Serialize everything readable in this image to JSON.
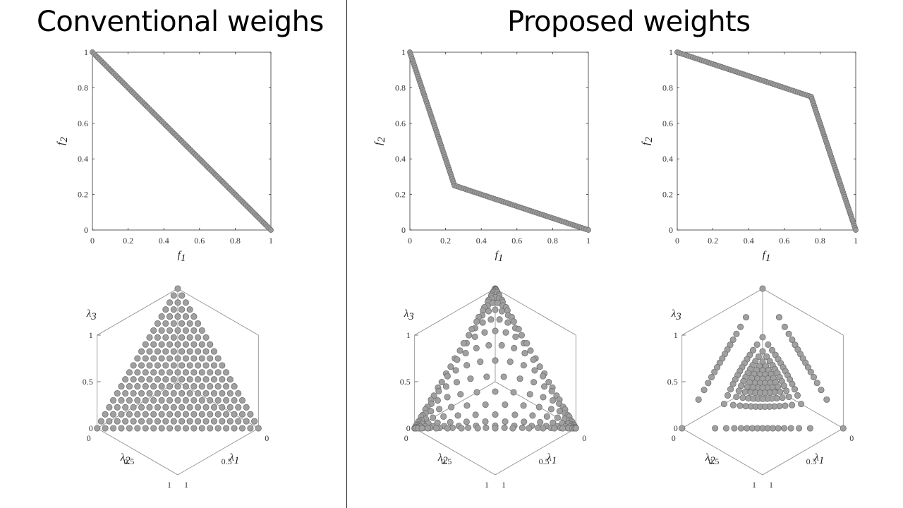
{
  "titles": {
    "left": "Conventional weighs",
    "right": "Proposed weights"
  },
  "chart_data": [
    {
      "type": "scatter",
      "panel": "conventional-2d",
      "xlabel": "f1",
      "ylabel": "f2",
      "xlim": [
        0,
        1
      ],
      "ylim": [
        0,
        1
      ],
      "xticks": [
        "0",
        "0.2",
        "0.4",
        "0.6",
        "0.8",
        "1"
      ],
      "yticks": [
        "0",
        "0.2",
        "0.4",
        "0.6",
        "0.8",
        "1"
      ],
      "marker_color": "#9a9a9a",
      "points_per_segment": 100,
      "segments": [
        [
          [
            0,
            1
          ],
          [
            1,
            0
          ]
        ]
      ]
    },
    {
      "type": "scatter",
      "panel": "proposed-2d-concave",
      "xlabel": "f1",
      "ylabel": "f2",
      "xlim": [
        0,
        1
      ],
      "ylim": [
        0,
        1
      ],
      "xticks": [
        "0",
        "0.2",
        "0.4",
        "0.6",
        "0.8",
        "1"
      ],
      "yticks": [
        "0",
        "0.2",
        "0.4",
        "0.6",
        "0.8",
        "1"
      ],
      "marker_color": "#9a9a9a",
      "points_per_segment": 60,
      "segments": [
        [
          [
            0,
            1
          ],
          [
            0.25,
            0.25
          ]
        ],
        [
          [
            0.25,
            0.25
          ],
          [
            1,
            0
          ]
        ]
      ]
    },
    {
      "type": "scatter",
      "panel": "proposed-2d-convex",
      "xlabel": "f1",
      "ylabel": "f2",
      "xlim": [
        0,
        1
      ],
      "ylim": [
        0,
        1
      ],
      "xticks": [
        "0",
        "0.2",
        "0.4",
        "0.6",
        "0.8",
        "1"
      ],
      "yticks": [
        "0",
        "0.2",
        "0.4",
        "0.6",
        "0.8",
        "1"
      ],
      "marker_color": "#9a9a9a",
      "points_per_segment": 60,
      "segments": [
        [
          [
            0,
            1
          ],
          [
            0.75,
            0.75
          ]
        ],
        [
          [
            0.75,
            0.75
          ],
          [
            1,
            0
          ]
        ]
      ]
    },
    {
      "type": "scatter",
      "panel": "conventional-3d",
      "axes": [
        "λ1",
        "λ2",
        "λ3"
      ],
      "vticks": [
        "0",
        "0.5",
        "1"
      ],
      "divisions": 20,
      "exponent": 1,
      "marker_color": "#a0a0a0"
    },
    {
      "type": "scatter",
      "panel": "proposed-3d-concave",
      "axes": [
        "λ1",
        "λ2",
        "λ3"
      ],
      "vticks": [
        "0",
        "0.5",
        "1"
      ],
      "divisions": 20,
      "exponent": 2.2,
      "marker_color": "#a0a0a0"
    },
    {
      "type": "scatter",
      "panel": "proposed-3d-convex",
      "axes": [
        "λ1",
        "λ2",
        "λ3"
      ],
      "vticks": [
        "0",
        "0.5",
        "1"
      ],
      "divisions": 16,
      "exponent": 0.5,
      "marker_color": "#a0a0a0"
    }
  ]
}
